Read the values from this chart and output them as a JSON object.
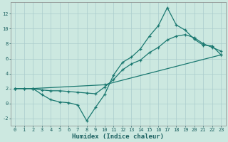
{
  "xlabel": "Humidex (Indice chaleur)",
  "background_color": "#cce8e0",
  "grid_color": "#aacccc",
  "line_color": "#1a7870",
  "xlim": [
    -0.5,
    23.5
  ],
  "ylim": [
    -3,
    13.5
  ],
  "xticks": [
    0,
    1,
    2,
    3,
    4,
    5,
    6,
    7,
    8,
    9,
    10,
    11,
    12,
    13,
    14,
    15,
    16,
    17,
    18,
    19,
    20,
    21,
    22,
    23
  ],
  "yticks": [
    -2,
    0,
    2,
    4,
    6,
    8,
    10,
    12
  ],
  "line1_x": [
    0,
    1,
    2,
    3,
    4,
    5,
    6,
    7,
    8,
    9,
    10,
    11,
    12,
    13,
    14,
    15,
    16,
    17,
    18,
    19,
    20,
    21,
    22,
    23
  ],
  "line1_y": [
    2,
    2,
    2,
    1.2,
    0.5,
    0.2,
    0.1,
    -0.2,
    -2.3,
    -0.5,
    1.2,
    3.8,
    5.5,
    6.2,
    7.3,
    9.0,
    10.4,
    12.8,
    10.5,
    9.8,
    8.6,
    7.8,
    7.7,
    6.5
  ],
  "line2_x": [
    0,
    1,
    2,
    3,
    4,
    5,
    6,
    7,
    8,
    9,
    10,
    11,
    12,
    13,
    14,
    15,
    16,
    17,
    18,
    19,
    20,
    21,
    22,
    23
  ],
  "line2_y": [
    2.0,
    2.0,
    2.0,
    1.8,
    1.7,
    1.7,
    1.6,
    1.5,
    1.4,
    1.3,
    2.2,
    3.2,
    4.5,
    5.3,
    5.8,
    6.8,
    7.5,
    8.5,
    9.0,
    9.2,
    8.8,
    8.0,
    7.5,
    7.0
  ],
  "line3_x": [
    0,
    2,
    10,
    23
  ],
  "line3_y": [
    2.0,
    2.0,
    2.5,
    6.5
  ]
}
